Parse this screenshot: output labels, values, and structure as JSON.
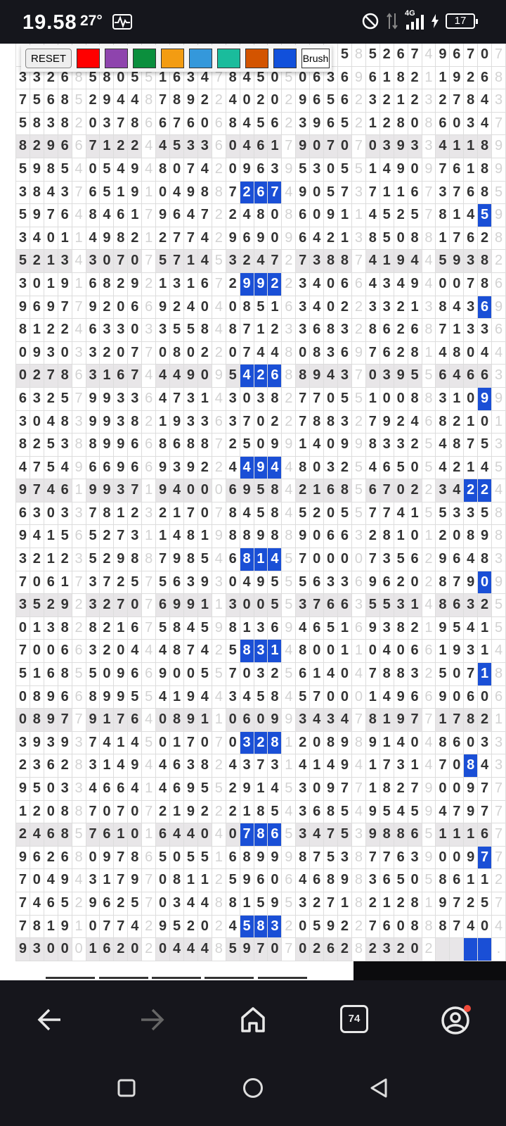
{
  "status_bar": {
    "time": "19.58",
    "temperature": "27°",
    "battery": "17",
    "network": "4G"
  },
  "toolbar": {
    "reset_label": "RESET",
    "brush_label": "Brush",
    "colors": [
      "#ff0000",
      "#8e44ad",
      "#0b8f3d",
      "#f39c12",
      "#3498db",
      "#1abc9c",
      "#d35400",
      "#1150db"
    ]
  },
  "grid": {
    "highlight_color": "#1a4fd6",
    "rows": [
      "_____ _____ _____ _____ ___58 52674 96707",
      "33268 58055 16347 84505 06369 61821 19268",
      "75685 29448 78922 40202 96562 32123 27843",
      "58382 03786 67606 84562 39652 12808 60347",
      "82966 71224 45336 04617 90707 03933 41189",
      "59854 05494 80742 09639 53055 14909 76189",
      "38437 65191 04988 72674 90573 71167 37685",
      "59764 84617 96472 24808 60911 45257 81459",
      "34011 49821 27742 96909 64213 85088 17628",
      "52134 30707 57145 32472 73887 41944 59382",
      "30191 68292 13167 29922 34066 43494 00786",
      "96977 92066 92404 08516 34022 33213 84369",
      "81224 63303 35584 87123 36832 86268 71336",
      "09303 32077 08022 07448 08369 76281 48044",
      "02786 31674 44909 54268 89437 03955 64663",
      "63257 99336 47314 30382 77055 10088 31099",
      "30483 99382 19336 37022 78832 79246 82101",
      "82538 89966 86887 25099 14099 83325 48753",
      "47549 66966 93922 44944 80325 46505 42145",
      "97461 99371 94000 69584 21685 67022 34224",
      "63033 78123 21707 84584 52055 77415 53358",
      "94156 52731 14819 88988 90663 28101 20898",
      "32123 52988 79854 68145 70000 73562 96483",
      "70617 37257 56393 04955 56336 96202 87909",
      "35292 32707 69911 30055 37663 55314 86325",
      "01382 82167 58459 81369 46516 93821 95415",
      "70066 32044 48742 58314 80011 04066 19314",
      "51685 50966 90055 70325 61404 78832 50718",
      "08966 89955 41944 34584 57000 14966 90606",
      "08977 91764 08911 06099 34347 81977 17821",
      "39393 74145 01707 03281 20898 91404 86033",
      "23628 31494 46382 43731 41494 17314 70843",
      "95033 46641 46955 29145 30977 18279 00977",
      "12088 70707 21922 21854 36854 95459 47977",
      "24685 76101 64404 07865 34753 98865 11167",
      "96268 09786 50551 68999 87538 77639 00977",
      "70494 31797 08112 59606 46898 36505 86112",
      "74652 96257 03448 81595 32718 21281 97257",
      "78191 07742 95202 45832 05922 76088 87404",
      "93000 16202 04448 59707 02628 23202 ____."
    ],
    "shaded_rows": [
      4,
      9,
      14,
      19,
      24,
      29,
      34,
      39
    ],
    "highlights": [
      [
        6,
        16
      ],
      [
        6,
        17
      ],
      [
        6,
        18
      ],
      [
        7,
        33
      ],
      [
        10,
        16
      ],
      [
        10,
        17
      ],
      [
        10,
        18
      ],
      [
        11,
        33
      ],
      [
        14,
        16
      ],
      [
        14,
        17
      ],
      [
        14,
        18
      ],
      [
        15,
        33
      ],
      [
        18,
        16
      ],
      [
        18,
        17
      ],
      [
        18,
        18
      ],
      [
        19,
        32
      ],
      [
        19,
        33
      ],
      [
        22,
        16
      ],
      [
        22,
        17
      ],
      [
        22,
        18
      ],
      [
        23,
        33
      ],
      [
        26,
        16
      ],
      [
        26,
        17
      ],
      [
        26,
        18
      ],
      [
        27,
        33
      ],
      [
        30,
        16
      ],
      [
        30,
        17
      ],
      [
        30,
        18
      ],
      [
        31,
        32
      ],
      [
        34,
        16
      ],
      [
        34,
        17
      ],
      [
        34,
        18
      ],
      [
        35,
        33
      ],
      [
        38,
        16
      ],
      [
        38,
        17
      ],
      [
        38,
        18
      ],
      [
        39,
        32
      ],
      [
        39,
        33
      ]
    ]
  },
  "browser_nav": {
    "tab_count": "74"
  }
}
